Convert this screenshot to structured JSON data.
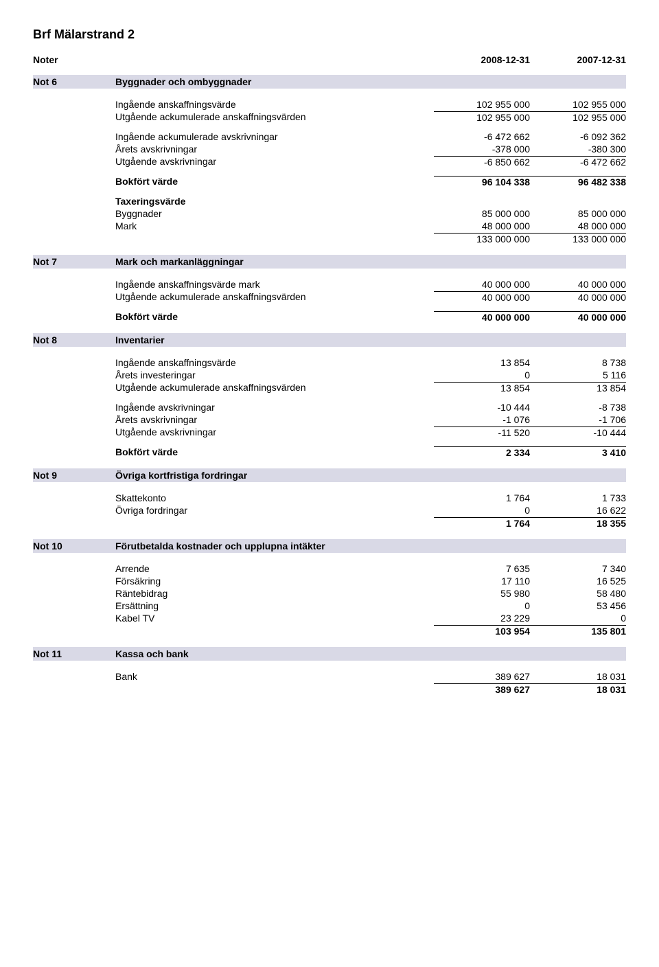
{
  "doc_title": "Brf Mälarstrand 2",
  "noter": {
    "label": "Noter",
    "y1": "2008-12-31",
    "y2": "2007-12-31"
  },
  "not6": {
    "key": "Not 6",
    "title": "Byggnader och ombyggnader",
    "rows": [
      {
        "lbl": "Ingående anskaffningsvärde",
        "v1": "102 955 000",
        "v2": "102 955 000"
      },
      {
        "lbl": "Utgående ackumulerade anskaffningsvärden",
        "v1": "102 955 000",
        "v2": "102 955 000",
        "sum": true
      }
    ],
    "rows2": [
      {
        "lbl": "Ingående ackumulerade avskrivningar",
        "v1": "-6 472 662",
        "v2": "-6 092 362"
      },
      {
        "lbl": "Årets avskrivningar",
        "v1": "-378 000",
        "v2": "-380 300"
      },
      {
        "lbl": "Utgående avskrivningar",
        "v1": "-6 850 662",
        "v2": "-6 472 662",
        "sum": true
      }
    ],
    "bokfort": {
      "lbl": "Bokfört värde",
      "v1": "96 104 338",
      "v2": "96 482 338"
    },
    "taxering_label": "Taxeringsvärde",
    "taxering": [
      {
        "lbl": "Byggnader",
        "v1": "85 000 000",
        "v2": "85 000 000"
      },
      {
        "lbl": "Mark",
        "v1": "48 000 000",
        "v2": "48 000 000"
      },
      {
        "lbl": "",
        "v1": "133 000 000",
        "v2": "133 000 000",
        "sum": true
      }
    ]
  },
  "not7": {
    "key": "Not 7",
    "title": "Mark och markanläggningar",
    "rows": [
      {
        "lbl": "Ingående anskaffningsvärde mark",
        "v1": "40 000 000",
        "v2": "40 000 000"
      },
      {
        "lbl": "Utgående ackumulerade anskaffningsvärden",
        "v1": "40 000 000",
        "v2": "40 000 000",
        "sum": true
      }
    ],
    "bokfort": {
      "lbl": "Bokfört värde",
      "v1": "40 000 000",
      "v2": "40 000 000"
    }
  },
  "not8": {
    "key": "Not 8",
    "title": "Inventarier",
    "rows": [
      {
        "lbl": "Ingående anskaffningsvärde",
        "v1": "13 854",
        "v2": "8 738"
      },
      {
        "lbl": "Årets investeringar",
        "v1": "0",
        "v2": "5 116"
      },
      {
        "lbl": "Utgående ackumulerade anskaffningsvärden",
        "v1": "13 854",
        "v2": "13 854",
        "sum": true
      }
    ],
    "rows2": [
      {
        "lbl": "Ingående avskrivningar",
        "v1": "-10 444",
        "v2": "-8 738"
      },
      {
        "lbl": "Årets avskrivningar",
        "v1": "-1 076",
        "v2": "-1 706"
      },
      {
        "lbl": "Utgående avskrivningar",
        "v1": "-11 520",
        "v2": "-10 444",
        "sum": true
      }
    ],
    "bokfort": {
      "lbl": "Bokfört värde",
      "v1": "2 334",
      "v2": "3 410"
    }
  },
  "not9": {
    "key": "Not 9",
    "title": "Övriga kortfristiga fordringar",
    "rows": [
      {
        "lbl": "Skattekonto",
        "v1": "1 764",
        "v2": "1 733"
      },
      {
        "lbl": "Övriga fordringar",
        "v1": "0",
        "v2": "16 622"
      },
      {
        "lbl": "",
        "v1": "1 764",
        "v2": "18 355",
        "sum": true,
        "bold": true
      }
    ]
  },
  "not10": {
    "key": "Not 10",
    "title": "Förutbetalda kostnader och upplupna intäkter",
    "rows": [
      {
        "lbl": "Arrende",
        "v1": "7 635",
        "v2": "7 340"
      },
      {
        "lbl": "Försäkring",
        "v1": "17 110",
        "v2": "16 525"
      },
      {
        "lbl": "Räntebidrag",
        "v1": "55 980",
        "v2": "58 480"
      },
      {
        "lbl": "Ersättning",
        "v1": "0",
        "v2": "53 456"
      },
      {
        "lbl": "Kabel TV",
        "v1": "23 229",
        "v2": "0"
      },
      {
        "lbl": "",
        "v1": "103 954",
        "v2": "135 801",
        "sum": true,
        "bold": true
      }
    ]
  },
  "not11": {
    "key": "Not 11",
    "title": "Kassa och bank",
    "rows": [
      {
        "lbl": "Bank",
        "v1": "389 627",
        "v2": "18 031"
      },
      {
        "lbl": "",
        "v1": "389 627",
        "v2": "18 031",
        "sum": true,
        "bold": true
      }
    ]
  }
}
